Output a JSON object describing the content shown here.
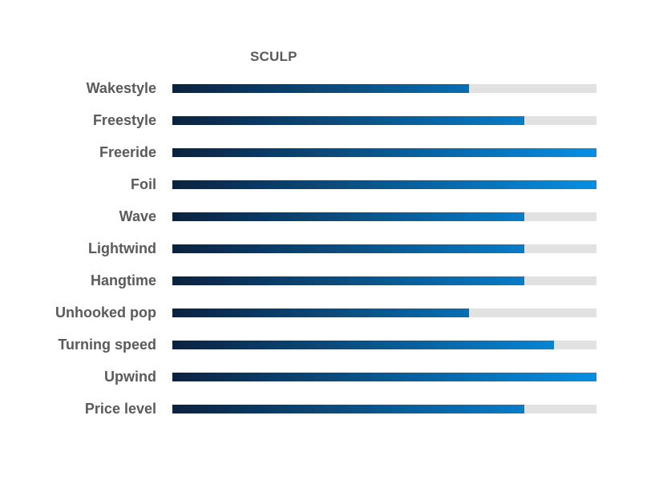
{
  "chart_data": {
    "type": "bar",
    "orientation": "horizontal",
    "title": "SCULP",
    "xlim": [
      0,
      100
    ],
    "categories": [
      "Wakestyle",
      "Freestyle",
      "Freeride",
      "Foil",
      "Wave",
      "Lightwind",
      "Hangtime",
      "Unhooked pop",
      "Turning speed",
      "Upwind",
      "Price level"
    ],
    "values": [
      70,
      83,
      100,
      100,
      83,
      83,
      83,
      70,
      90,
      100,
      83
    ],
    "colors": {
      "gradient_start": "#0b2240",
      "gradient_end": "#0a8ee0",
      "track": "#e2e2e2",
      "text": "#5a5a5a"
    },
    "grid": false,
    "legend": "none"
  }
}
